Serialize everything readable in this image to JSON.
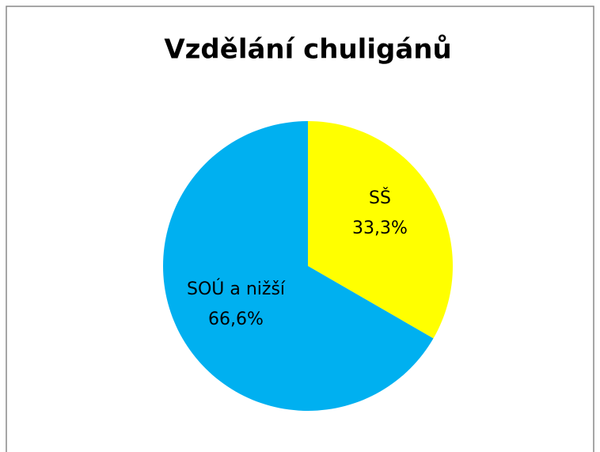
{
  "chart_data": {
    "type": "pie",
    "title": "Vzdělání chuligánů",
    "categories": [
      "SŠ",
      "SOÚ  a nižší"
    ],
    "values": [
      33.3,
      66.6
    ],
    "value_labels": [
      "33,3%",
      "66,6%"
    ],
    "colors": [
      "#ffff00",
      "#00b0f0"
    ]
  }
}
